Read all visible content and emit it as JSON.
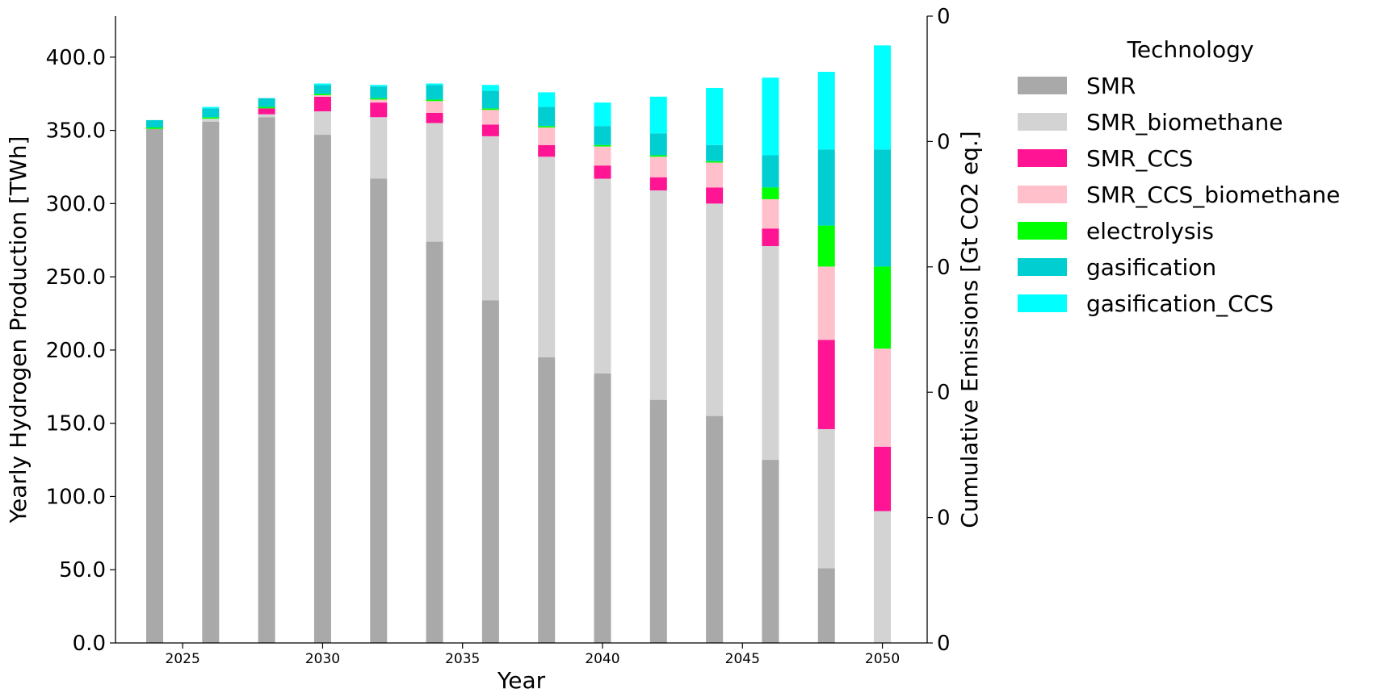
{
  "chart_data": {
    "type": "bar",
    "stacked": true,
    "xlabel": "Year",
    "ylabel": "Yearly Hydrogen Production [TWh]",
    "y2label": "Cumulative Emissions [Gt CO2 eq.]",
    "ylim": [
      0,
      428
    ],
    "xlim": [
      2022.6,
      2051.6
    ],
    "yticks": [
      0,
      50,
      100,
      150,
      200,
      250,
      300,
      350,
      400
    ],
    "ytick_labels": [
      "0.0",
      "50.0",
      "100.0",
      "150.0",
      "200.0",
      "250.0",
      "300.0",
      "350.0",
      "400.0"
    ],
    "xticks": [
      2025,
      2030,
      2035,
      2040,
      2045,
      2050
    ],
    "xtick_labels": [
      "2025",
      "2030",
      "2035",
      "2040",
      "2045",
      "2050"
    ],
    "y2tick_labels": [
      "0",
      "0",
      "0",
      "0",
      "0",
      "0"
    ],
    "categories": [
      2024,
      2026,
      2028,
      2030,
      2032,
      2034,
      2036,
      2038,
      2040,
      2042,
      2044,
      2046,
      2048,
      2050
    ],
    "legend_title": "Technology",
    "legend_position": "outside-right",
    "series": [
      {
        "name": "SMR",
        "color": "#a9a9a9",
        "values": [
          351,
          356,
          359,
          347,
          317,
          274,
          234,
          195,
          184,
          166,
          155,
          125,
          51,
          0
        ]
      },
      {
        "name": "SMR_biomethane",
        "color": "#d3d3d3",
        "values": [
          0,
          2,
          2,
          16,
          42,
          81,
          112,
          137,
          133,
          143,
          145,
          146,
          95,
          90
        ]
      },
      {
        "name": "SMR_CCS",
        "color": "#ff1493",
        "values": [
          0,
          0,
          4,
          10,
          10,
          7,
          8,
          8,
          9,
          9,
          11,
          12,
          61,
          44
        ]
      },
      {
        "name": "SMR_CCS_biomethane",
        "color": "#ffc0cb",
        "values": [
          0,
          0,
          0,
          1,
          2,
          8,
          10,
          12,
          13,
          14,
          17,
          20,
          50,
          67
        ]
      },
      {
        "name": "electrolysis",
        "color": "#00ff00",
        "values": [
          1,
          1,
          1,
          1,
          1,
          1,
          1,
          1,
          1,
          1,
          1,
          8,
          28,
          56
        ]
      },
      {
        "name": "gasification",
        "color": "#00ced1",
        "values": [
          5,
          6,
          6,
          6,
          8,
          10,
          12,
          13,
          13,
          15,
          11,
          22,
          52,
          80
        ]
      },
      {
        "name": "gasification_CCS",
        "color": "#00ffff",
        "values": [
          0,
          1,
          0,
          1,
          1,
          1,
          4,
          10,
          16,
          25,
          39,
          53,
          53,
          71
        ]
      }
    ]
  }
}
